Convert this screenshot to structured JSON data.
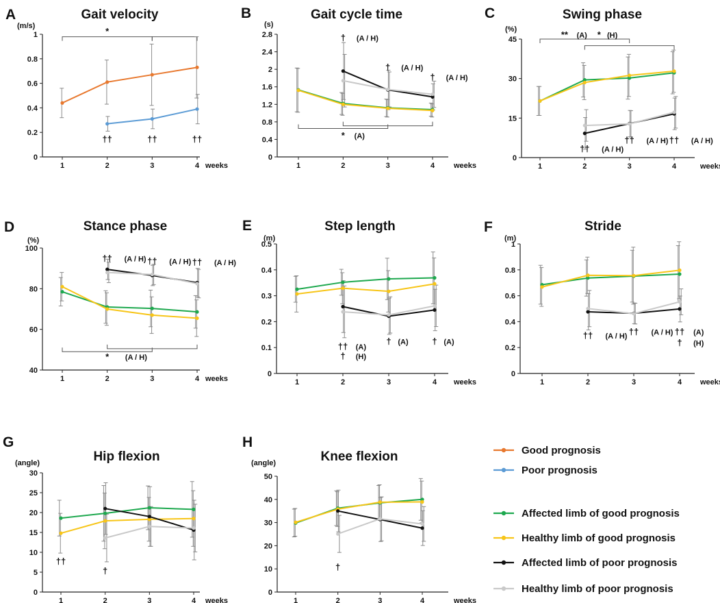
{
  "colors": {
    "good": "#E8782E",
    "poor": "#5B9BD5",
    "affected_good": "#1DA84E",
    "healthy_good": "#F7C518",
    "affected_poor": "#111111",
    "healthy_poor": "#C9C9C9",
    "error_bar": "#8a8a8a",
    "bracket": "#555555"
  },
  "legend": [
    {
      "key": "good",
      "label": "Good prognosis"
    },
    {
      "key": "poor",
      "label": "Poor prognosis"
    },
    {
      "key": "affected_good",
      "label": "Affected limb of good prognosis"
    },
    {
      "key": "healthy_good",
      "label": "Healthy limb of good prognosis"
    },
    {
      "key": "affected_poor",
      "label": "Affected limb of poor prognosis"
    },
    {
      "key": "healthy_poor",
      "label": "Healthy limb of poor prognosis"
    }
  ],
  "chart_data": [
    {
      "panel": "A",
      "type": "line",
      "title": "Gait velocity",
      "ylabel": "(m/s)",
      "xlabel": "weeks",
      "categories": [
        "1",
        "2",
        "3",
        "4"
      ],
      "ylim": [
        0,
        1
      ],
      "yticks": [
        "0",
        "0.2",
        "0.4",
        "0.6",
        "0.8",
        "1"
      ],
      "series": [
        {
          "name": "Good prognosis",
          "color_key": "good",
          "values": [
            0.44,
            0.61,
            0.67,
            0.73
          ],
          "errors": [
            0.12,
            0.18,
            0.25,
            0.25
          ]
        },
        {
          "name": "Poor prognosis",
          "color_key": "poor",
          "values": [
            null,
            0.27,
            0.31,
            0.39
          ],
          "errors": [
            null,
            0.06,
            0.08,
            0.12
          ]
        }
      ],
      "brackets": [
        {
          "from": "1",
          "to": "3",
          "level": 0.98
        },
        {
          "from": "3",
          "to": "4",
          "level": 0.98
        }
      ],
      "annotations": [
        {
          "text": "*",
          "x": 2,
          "y": 1.0,
          "big": true
        },
        {
          "text": "††",
          "x": 2,
          "y": 0.12,
          "big": true
        },
        {
          "text": "††",
          "x": 3,
          "y": 0.12,
          "big": true
        },
        {
          "text": "††",
          "x": 4,
          "y": 0.12,
          "big": true
        }
      ]
    },
    {
      "panel": "B",
      "type": "line",
      "title": "Gait cycle time",
      "ylabel": "(s)",
      "xlabel": "weeks",
      "categories": [
        "1",
        "2",
        "3",
        "4"
      ],
      "ylim": [
        0,
        2.8
      ],
      "yticks": [
        "0",
        "0.4",
        "0.8",
        "1.2",
        "1.6",
        "2",
        "2.4",
        "2.8"
      ],
      "series": [
        {
          "name": "Affected limb of good prognosis",
          "color_key": "affected_good",
          "values": [
            1.53,
            1.22,
            1.12,
            1.08
          ],
          "errors": [
            0.5,
            0.25,
            0.2,
            0.15
          ]
        },
        {
          "name": "Healthy limb of good prognosis",
          "color_key": "healthy_good",
          "values": [
            1.52,
            1.2,
            1.11,
            1.06
          ],
          "errors": [
            0.5,
            0.25,
            0.2,
            0.15
          ]
        },
        {
          "name": "Affected limb of poor prognosis",
          "color_key": "affected_poor",
          "values": [
            null,
            1.96,
            1.53,
            1.37
          ],
          "errors": [
            null,
            0.65,
            0.45,
            0.3
          ]
        },
        {
          "name": "Healthy limb of poor prognosis",
          "color_key": "healthy_poor",
          "values": [
            null,
            1.74,
            1.54,
            1.43
          ],
          "errors": [
            null,
            0.6,
            0.4,
            0.3
          ]
        }
      ],
      "brackets": [
        {
          "from": "1",
          "to": "3",
          "level": 0.65,
          "down": true
        },
        {
          "from": "2",
          "to": "4",
          "level": 0.71,
          "down": true
        }
      ],
      "annotations": [
        {
          "text": "*",
          "x": 2.0,
          "y": 0.42,
          "big": true
        },
        {
          "text": "(A)",
          "x": 2.25,
          "y": 0.42
        },
        {
          "text": "†",
          "x": 2,
          "y": 2.65,
          "big": true
        },
        {
          "text": "(A / H)",
          "x": 2.3,
          "y": 2.65
        },
        {
          "text": "†",
          "x": 3,
          "y": 1.98,
          "big": true
        },
        {
          "text": "(A / H)",
          "x": 3.3,
          "y": 1.98
        },
        {
          "text": "†",
          "x": 4,
          "y": 1.75,
          "big": true
        },
        {
          "text": "(A / H)",
          "x": 4.3,
          "y": 1.75
        }
      ]
    },
    {
      "panel": "C",
      "type": "line",
      "title": "Swing phase",
      "ylabel": "(%)",
      "xlabel": "weeks",
      "categories": [
        "1",
        "2",
        "3",
        "4"
      ],
      "ylim": [
        0,
        45
      ],
      "yticks": [
        "0",
        "15",
        "30",
        "45"
      ],
      "series": [
        {
          "name": "Affected limb of good prognosis",
          "color_key": "affected_good",
          "values": [
            21.5,
            29.5,
            30.2,
            32.2
          ],
          "errors": [
            5.5,
            6.5,
            8,
            8
          ]
        },
        {
          "name": "Healthy limb of good prognosis",
          "color_key": "healthy_good",
          "values": [
            21.5,
            28.5,
            31.2,
            32.8
          ],
          "errors": [
            5.5,
            6.5,
            8,
            8
          ]
        },
        {
          "name": "Affected limb of poor prognosis",
          "color_key": "affected_poor",
          "values": [
            null,
            9.2,
            12.9,
            16.6
          ],
          "errors": [
            null,
            6,
            5,
            6
          ]
        },
        {
          "name": "Healthy limb of poor prognosis",
          "color_key": "healthy_poor",
          "values": [
            null,
            12.2,
            12.8,
            17.2
          ],
          "errors": [
            null,
            6,
            5,
            6
          ]
        }
      ],
      "brackets": [
        {
          "from": "1",
          "to": "3",
          "level": 45
        },
        {
          "from": "2",
          "to": "4",
          "level": 42.5
        }
      ],
      "annotations": [
        {
          "text": "**",
          "x": 1.55,
          "y": 45.5,
          "big": true
        },
        {
          "text": "(A)",
          "x": 1.82,
          "y": 45.5
        },
        {
          "text": "*",
          "x": 2.32,
          "y": 45.5,
          "big": true
        },
        {
          "text": "(H)",
          "x": 2.5,
          "y": 45.5
        },
        {
          "text": "††",
          "x": 2,
          "y": 2.2,
          "big": true
        },
        {
          "text": "(A / H)",
          "x": 2.38,
          "y": 2.2
        },
        {
          "text": "††",
          "x": 3,
          "y": 5.5,
          "big": true
        },
        {
          "text": "(A / H)",
          "x": 3.38,
          "y": 5.5
        },
        {
          "text": "††",
          "x": 4,
          "y": 5.5,
          "big": true
        },
        {
          "text": "(A / H)",
          "x": 4.38,
          "y": 5.5
        }
      ]
    },
    {
      "panel": "D",
      "type": "line",
      "title": "Stance phase",
      "ylabel": "(%)",
      "xlabel": "weeks",
      "categories": [
        "1",
        "2",
        "3",
        "4"
      ],
      "ylim": [
        40,
        100
      ],
      "yticks": [
        "40",
        "60",
        "80",
        "100"
      ],
      "series": [
        {
          "name": "Affected limb of good prognosis",
          "color_key": "affected_good",
          "values": [
            78.5,
            71,
            70.3,
            68.6
          ],
          "errors": [
            7,
            8,
            9,
            8
          ]
        },
        {
          "name": "Healthy limb of good prognosis",
          "color_key": "healthy_good",
          "values": [
            81,
            70,
            67,
            65.5
          ],
          "errors": [
            7,
            8,
            9,
            9
          ]
        },
        {
          "name": "Affected limb of poor prognosis",
          "color_key": "affected_poor",
          "values": [
            null,
            89.5,
            86.5,
            83
          ],
          "errors": [
            null,
            5,
            5,
            7
          ]
        },
        {
          "name": "Healthy limb of poor prognosis",
          "color_key": "healthy_poor",
          "values": [
            null,
            88,
            87,
            82.5
          ],
          "errors": [
            null,
            5,
            5,
            7
          ]
        }
      ],
      "brackets": [
        {
          "from": "1",
          "to": "3",
          "level": 49,
          "down": true
        },
        {
          "from": "2",
          "to": "4",
          "level": 50.5,
          "down": true
        }
      ],
      "annotations": [
        {
          "text": "*",
          "x": 2.0,
          "y": 45,
          "big": true
        },
        {
          "text": "(A / H)",
          "x": 2.4,
          "y": 45
        },
        {
          "text": "††",
          "x": 2,
          "y": 93.5,
          "big": true
        },
        {
          "text": "(A / H)",
          "x": 2.38,
          "y": 93.5
        },
        {
          "text": "††",
          "x": 3,
          "y": 92,
          "big": true
        },
        {
          "text": "(A / H)",
          "x": 3.38,
          "y": 92
        },
        {
          "text": "††",
          "x": 4,
          "y": 91.5,
          "big": true
        },
        {
          "text": "(A / H)",
          "x": 4.38,
          "y": 91.5
        }
      ]
    },
    {
      "panel": "E",
      "type": "line",
      "title": "Step length",
      "ylabel": "(m)",
      "xlabel": "weeks",
      "categories": [
        "1",
        "2",
        "3",
        "4"
      ],
      "ylim": [
        0,
        0.5
      ],
      "yticks": [
        "0",
        "0.1",
        "0.2",
        "0.3",
        "0.4",
        "0.5"
      ],
      "series": [
        {
          "name": "Affected limb of good prognosis",
          "color_key": "affected_good",
          "values": [
            0.325,
            0.352,
            0.365,
            0.369
          ],
          "errors": [
            0.05,
            0.05,
            0.08,
            0.1
          ]
        },
        {
          "name": "Healthy limb of good prognosis",
          "color_key": "healthy_good",
          "values": [
            0.307,
            0.329,
            0.317,
            0.346
          ],
          "errors": [
            0.07,
            0.06,
            0.08,
            0.1
          ]
        },
        {
          "name": "Affected limb of poor prognosis",
          "color_key": "affected_poor",
          "values": [
            null,
            0.258,
            0.221,
            0.245
          ],
          "errors": [
            null,
            0.1,
            0.07,
            0.08
          ]
        },
        {
          "name": "Healthy limb of poor prognosis",
          "color_key": "healthy_poor",
          "values": [
            null,
            0.238,
            0.226,
            0.261
          ],
          "errors": [
            null,
            0.1,
            0.07,
            0.08
          ]
        }
      ],
      "brackets": [],
      "annotations": [
        {
          "text": "††",
          "x": 2,
          "y": 0.092,
          "big": true
        },
        {
          "text": "(A)",
          "x": 2.28,
          "y": 0.092
        },
        {
          "text": "†",
          "x": 2,
          "y": 0.056,
          "big": true
        },
        {
          "text": "(H)",
          "x": 2.28,
          "y": 0.056
        },
        {
          "text": "†",
          "x": 3,
          "y": 0.113,
          "big": true
        },
        {
          "text": "(A)",
          "x": 3.2,
          "y": 0.113
        },
        {
          "text": "†",
          "x": 4,
          "y": 0.113,
          "big": true
        },
        {
          "text": "(A)",
          "x": 4.2,
          "y": 0.113
        }
      ]
    },
    {
      "panel": "F",
      "type": "line",
      "title": "Stride",
      "ylabel": "(m)",
      "xlabel": "weeks",
      "categories": [
        "1",
        "2",
        "3",
        "4"
      ],
      "ylim": [
        0,
        1
      ],
      "yticks": [
        "0",
        "0.2",
        "0.4",
        "0.6",
        "0.8",
        "1"
      ],
      "series": [
        {
          "name": "Affected limb of good prognosis",
          "color_key": "affected_good",
          "values": [
            0.685,
            0.737,
            0.751,
            0.767
          ],
          "errors": [
            0.15,
            0.14,
            0.2,
            0.22
          ]
        },
        {
          "name": "Healthy limb of good prognosis",
          "color_key": "healthy_good",
          "values": [
            0.668,
            0.758,
            0.755,
            0.797
          ],
          "errors": [
            0.15,
            0.14,
            0.22,
            0.22
          ]
        },
        {
          "name": "Affected limb of poor prognosis",
          "color_key": "affected_poor",
          "values": [
            null,
            0.476,
            0.464,
            0.498
          ],
          "errors": [
            null,
            0.14,
            0.08,
            0.1
          ]
        },
        {
          "name": "Healthy limb of poor prognosis",
          "color_key": "healthy_poor",
          "values": [
            null,
            0.501,
            0.462,
            0.553
          ],
          "errors": [
            null,
            0.14,
            0.08,
            0.1
          ]
        }
      ],
      "brackets": [],
      "annotations": [
        {
          "text": "††",
          "x": 2,
          "y": 0.27,
          "big": true
        },
        {
          "text": "(A / H)",
          "x": 2.38,
          "y": 0.27
        },
        {
          "text": "††",
          "x": 3,
          "y": 0.3,
          "big": true
        },
        {
          "text": "(A / H)",
          "x": 3.38,
          "y": 0.3
        },
        {
          "text": "††",
          "x": 4,
          "y": 0.3,
          "big": true
        },
        {
          "text": "(A)",
          "x": 4.3,
          "y": 0.3
        },
        {
          "text": "†",
          "x": 4,
          "y": 0.215,
          "big": true
        },
        {
          "text": "(H)",
          "x": 4.3,
          "y": 0.215
        }
      ]
    },
    {
      "panel": "G",
      "type": "line",
      "title": "Hip flexion",
      "ylabel": "(angle)",
      "xlabel": "weeks",
      "categories": [
        "1",
        "2",
        "3",
        "4"
      ],
      "ylim": [
        0,
        30
      ],
      "yticks": [
        "0",
        "5",
        "10",
        "15",
        "20",
        "25",
        "30"
      ],
      "series": [
        {
          "name": "Affected limb of good prognosis",
          "color_key": "affected_good",
          "values": [
            18.6,
            19.8,
            21.2,
            20.8
          ],
          "errors": [
            4.5,
            7,
            5.5,
            7
          ]
        },
        {
          "name": "Healthy limb of good prognosis",
          "color_key": "healthy_good",
          "values": [
            14.8,
            17.9,
            18.3,
            18.5
          ],
          "errors": [
            5,
            7,
            5.5,
            7
          ]
        },
        {
          "name": "Affected limb of poor prognosis",
          "color_key": "affected_poor",
          "values": [
            null,
            21.0,
            19.0,
            15.6
          ],
          "errors": [
            null,
            6.5,
            7.5,
            7.5
          ]
        },
        {
          "name": "Healthy limb of poor prognosis",
          "color_key": "healthy_poor",
          "values": [
            null,
            13.6,
            16.5,
            16.1
          ],
          "errors": [
            null,
            6,
            5,
            6
          ]
        }
      ],
      "brackets": [],
      "annotations": [
        {
          "text": "††",
          "x": 1,
          "y": 7.0,
          "big": true
        },
        {
          "text": "†",
          "x": 2,
          "y": 4.6,
          "big": true
        }
      ]
    },
    {
      "panel": "H",
      "type": "line",
      "title": "Knee flexion",
      "ylabel": "(angle)",
      "xlabel": "weeks",
      "categories": [
        "1",
        "2",
        "3",
        "4"
      ],
      "ylim": [
        0,
        50
      ],
      "yticks": [
        "0",
        "10",
        "20",
        "30",
        "40",
        "50"
      ],
      "series": [
        {
          "name": "Affected limb of good prognosis",
          "color_key": "affected_good",
          "values": [
            29.8,
            36.2,
            38.5,
            40.0
          ],
          "errors": [
            6,
            7.5,
            7.5,
            9
          ]
        },
        {
          "name": "Healthy limb of good prognosis",
          "color_key": "healthy_good",
          "values": [
            30.1,
            35.8,
            38.8,
            38.9
          ],
          "errors": [
            6,
            7.5,
            7.5,
            9
          ]
        },
        {
          "name": "Affected limb of poor prognosis",
          "color_key": "affected_poor",
          "values": [
            null,
            35.0,
            31.3,
            27.6
          ],
          "errors": [
            null,
            9,
            9.5,
            7.5
          ]
        },
        {
          "name": "Healthy limb of poor prognosis",
          "color_key": "healthy_poor",
          "values": [
            null,
            25.1,
            31.6,
            29.4
          ],
          "errors": [
            null,
            8,
            9.5,
            7.5
          ]
        }
      ],
      "brackets": [],
      "annotations": [
        {
          "text": "†",
          "x": 2,
          "y": 9.5,
          "big": true
        }
      ]
    }
  ]
}
